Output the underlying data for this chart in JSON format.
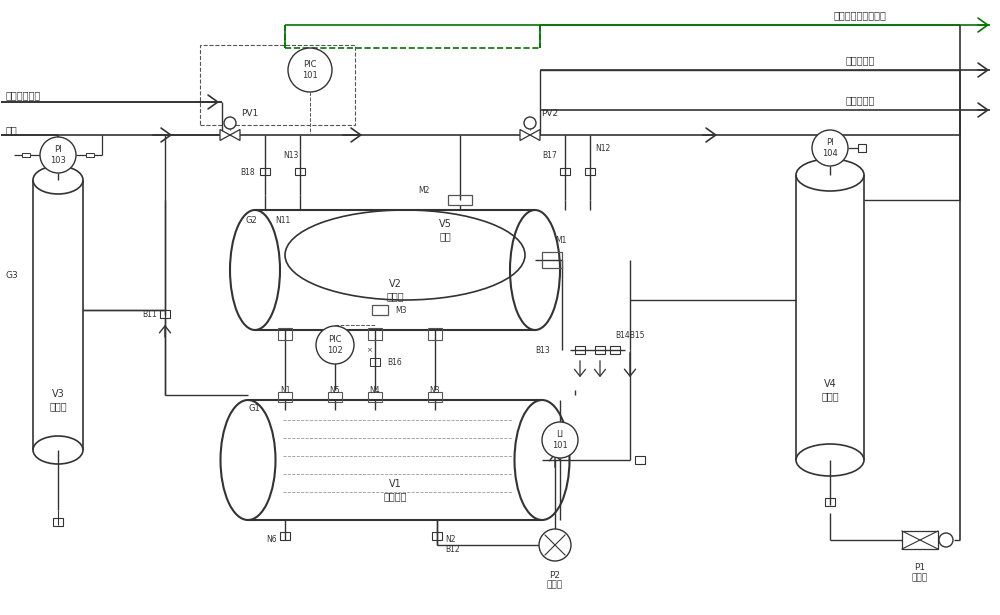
{
  "bg": "#ffffff",
  "lc": "#333333",
  "gc": "#555555",
  "grn": "#007700",
  "purple": "#800080",
  "figsize": [
    10.0,
    6.15
  ],
  "dpi": 100,
  "labels": {
    "top_right_1": "去放空尾气处理系统",
    "top_right_2": "去用料设备",
    "top_right_3": "去洁净放空",
    "left_top_1": "物料自设备来",
    "left_top_2": "氯气",
    "V1": "V1\n液体储罐",
    "V2": "V2\n气囊罐",
    "V3": "V3\n氯气罐",
    "V4": "V4\n真空罐",
    "V5": "V5\n气囊",
    "P1_label": "真空泵",
    "P2_label": "输送泵",
    "PIC101": "PIC\n101",
    "PIC102": "PIC\n102",
    "PI103": "PI\n103",
    "PI104": "PI\n104",
    "LI101": "LI\n101"
  }
}
